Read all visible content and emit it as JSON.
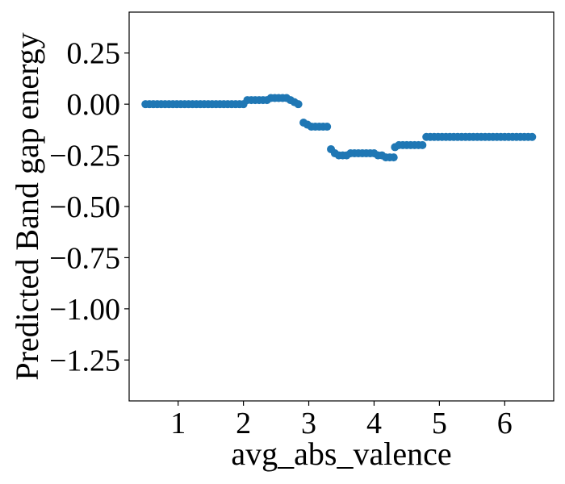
{
  "chart_data": {
    "type": "scatter",
    "xlabel": "avg_abs_valence",
    "ylabel": "Predicted Band gap energy",
    "xlim": [
      0.25,
      6.75
    ],
    "ylim": [
      -1.45,
      0.45
    ],
    "grid": false,
    "legend": "none",
    "x_ticks": [
      {
        "value": 1,
        "label": "1"
      },
      {
        "value": 2,
        "label": "2"
      },
      {
        "value": 3,
        "label": "3"
      },
      {
        "value": 4,
        "label": "4"
      },
      {
        "value": 5,
        "label": "5"
      },
      {
        "value": 6,
        "label": "6"
      }
    ],
    "y_ticks": [
      {
        "value": 0.25,
        "label": "0.25"
      },
      {
        "value": 0.0,
        "label": "0.00"
      },
      {
        "value": -0.25,
        "label": "−0.25"
      },
      {
        "value": -0.5,
        "label": "−0.50"
      },
      {
        "value": -0.75,
        "label": "−0.75"
      },
      {
        "value": -1.0,
        "label": "−1.00"
      },
      {
        "value": -1.25,
        "label": "−1.25"
      }
    ],
    "series": [
      {
        "color": "#1f77b4",
        "points": [
          [
            0.5,
            0.0
          ],
          [
            0.56,
            0.0
          ],
          [
            0.62,
            0.0
          ],
          [
            0.68,
            0.0
          ],
          [
            0.74,
            0.0
          ],
          [
            0.8,
            0.0
          ],
          [
            0.86,
            0.0
          ],
          [
            0.92,
            0.0
          ],
          [
            0.98,
            0.0
          ],
          [
            1.04,
            0.0
          ],
          [
            1.1,
            0.0
          ],
          [
            1.16,
            0.0
          ],
          [
            1.22,
            0.0
          ],
          [
            1.28,
            0.0
          ],
          [
            1.34,
            0.0
          ],
          [
            1.4,
            0.0
          ],
          [
            1.46,
            0.0
          ],
          [
            1.52,
            0.0
          ],
          [
            1.58,
            0.0
          ],
          [
            1.64,
            0.0
          ],
          [
            1.7,
            0.0
          ],
          [
            1.76,
            0.0
          ],
          [
            1.82,
            0.0
          ],
          [
            1.88,
            0.0
          ],
          [
            1.94,
            0.0
          ],
          [
            2.0,
            0.0
          ],
          [
            2.06,
            0.02
          ],
          [
            2.12,
            0.02
          ],
          [
            2.18,
            0.02
          ],
          [
            2.24,
            0.02
          ],
          [
            2.3,
            0.02
          ],
          [
            2.36,
            0.02
          ],
          [
            2.42,
            0.03
          ],
          [
            2.48,
            0.03
          ],
          [
            2.54,
            0.03
          ],
          [
            2.6,
            0.03
          ],
          [
            2.66,
            0.03
          ],
          [
            2.72,
            0.02
          ],
          [
            2.78,
            0.01
          ],
          [
            2.84,
            0.0
          ],
          [
            2.92,
            -0.09
          ],
          [
            2.98,
            -0.1
          ],
          [
            3.04,
            -0.11
          ],
          [
            3.1,
            -0.11
          ],
          [
            3.16,
            -0.11
          ],
          [
            3.22,
            -0.11
          ],
          [
            3.28,
            -0.11
          ],
          [
            3.34,
            -0.22
          ],
          [
            3.4,
            -0.24
          ],
          [
            3.46,
            -0.25
          ],
          [
            3.52,
            -0.25
          ],
          [
            3.58,
            -0.25
          ],
          [
            3.64,
            -0.24
          ],
          [
            3.7,
            -0.24
          ],
          [
            3.76,
            -0.24
          ],
          [
            3.82,
            -0.24
          ],
          [
            3.88,
            -0.24
          ],
          [
            3.94,
            -0.24
          ],
          [
            4.0,
            -0.24
          ],
          [
            4.06,
            -0.25
          ],
          [
            4.12,
            -0.25
          ],
          [
            4.18,
            -0.26
          ],
          [
            4.24,
            -0.26
          ],
          [
            4.3,
            -0.26
          ],
          [
            4.32,
            -0.21
          ],
          [
            4.38,
            -0.2
          ],
          [
            4.44,
            -0.2
          ],
          [
            4.5,
            -0.2
          ],
          [
            4.56,
            -0.2
          ],
          [
            4.62,
            -0.2
          ],
          [
            4.68,
            -0.2
          ],
          [
            4.74,
            -0.2
          ],
          [
            4.8,
            -0.16
          ],
          [
            4.86,
            -0.16
          ],
          [
            4.92,
            -0.16
          ],
          [
            4.98,
            -0.16
          ],
          [
            5.04,
            -0.16
          ],
          [
            5.1,
            -0.16
          ],
          [
            5.16,
            -0.16
          ],
          [
            5.22,
            -0.16
          ],
          [
            5.28,
            -0.16
          ],
          [
            5.34,
            -0.16
          ],
          [
            5.4,
            -0.16
          ],
          [
            5.46,
            -0.16
          ],
          [
            5.52,
            -0.16
          ],
          [
            5.58,
            -0.16
          ],
          [
            5.64,
            -0.16
          ],
          [
            5.7,
            -0.16
          ],
          [
            5.76,
            -0.16
          ],
          [
            5.82,
            -0.16
          ],
          [
            5.88,
            -0.16
          ],
          [
            5.94,
            -0.16
          ],
          [
            6.0,
            -0.16
          ],
          [
            6.06,
            -0.16
          ],
          [
            6.12,
            -0.16
          ],
          [
            6.18,
            -0.16
          ],
          [
            6.24,
            -0.16
          ],
          [
            6.3,
            -0.16
          ],
          [
            6.36,
            -0.16
          ],
          [
            6.42,
            -0.16
          ]
        ]
      }
    ]
  }
}
